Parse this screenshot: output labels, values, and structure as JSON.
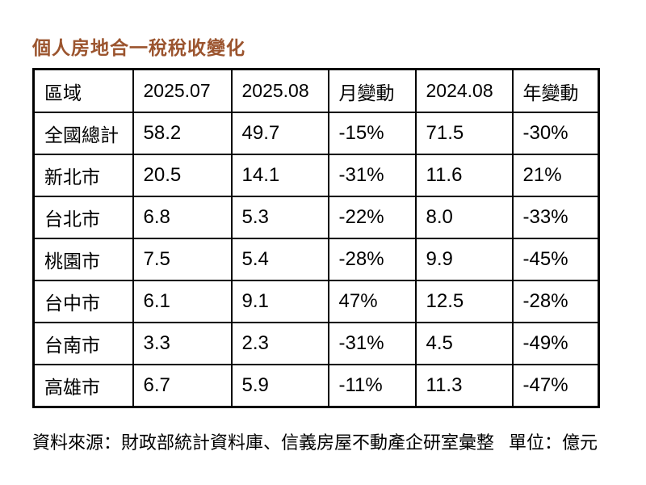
{
  "title": "個人房地合一稅稅收變化",
  "title_color": "#9B542E",
  "table": {
    "headers": [
      "區域",
      "2025.07",
      "2025.08",
      "月變動",
      "2024.08",
      "年變動"
    ],
    "rows": [
      [
        "全國總計",
        "58.2",
        "49.7",
        "-15%",
        "71.5",
        "-30%"
      ],
      [
        "新北市",
        "20.5",
        "14.1",
        "-31%",
        "11.6",
        "21%"
      ],
      [
        "台北市",
        "6.8",
        "5.3",
        "-22%",
        "8.0",
        "-33%"
      ],
      [
        "桃園市",
        "7.5",
        "5.4",
        "-28%",
        "9.9",
        "-45%"
      ],
      [
        "台中市",
        "6.1",
        "9.1",
        "47%",
        "12.5",
        "-28%"
      ],
      [
        "台南市",
        "3.3",
        "2.3",
        "-31%",
        "4.5",
        "-49%"
      ],
      [
        "高雄市",
        "6.7",
        "5.9",
        "-11%",
        "11.3",
        "-47%"
      ]
    ]
  },
  "footer": {
    "source": "資料來源：財政部統計資料庫、信義房屋不動產企研室彙整",
    "unit": "單位：億元"
  },
  "chart_data": {
    "type": "table",
    "title": "個人房地合一稅稅收變化",
    "columns": [
      "區域",
      "2025.07",
      "2025.08",
      "月變動",
      "2024.08",
      "年變動"
    ],
    "rows": [
      {
        "region": "全國總計",
        "v2025_07": 58.2,
        "v2025_08": 49.7,
        "month_change": "-15%",
        "v2024_08": 71.5,
        "year_change": "-30%"
      },
      {
        "region": "新北市",
        "v2025_07": 20.5,
        "v2025_08": 14.1,
        "month_change": "-31%",
        "v2024_08": 11.6,
        "year_change": "21%"
      },
      {
        "region": "台北市",
        "v2025_07": 6.8,
        "v2025_08": 5.3,
        "month_change": "-22%",
        "v2024_08": 8.0,
        "year_change": "-33%"
      },
      {
        "region": "桃園市",
        "v2025_07": 7.5,
        "v2025_08": 5.4,
        "month_change": "-28%",
        "v2024_08": 9.9,
        "year_change": "-45%"
      },
      {
        "region": "台中市",
        "v2025_07": 6.1,
        "v2025_08": 9.1,
        "month_change": "47%",
        "v2024_08": 12.5,
        "year_change": "-28%"
      },
      {
        "region": "台南市",
        "v2025_07": 3.3,
        "v2025_08": 2.3,
        "month_change": "-31%",
        "v2024_08": 4.5,
        "year_change": "-49%"
      },
      {
        "region": "高雄市",
        "v2025_07": 6.7,
        "v2025_08": 5.9,
        "month_change": "-11%",
        "v2024_08": 11.3,
        "year_change": "-47%"
      }
    ],
    "unit": "億元",
    "source": "財政部統計資料庫、信義房屋不動產企研室彙整"
  }
}
